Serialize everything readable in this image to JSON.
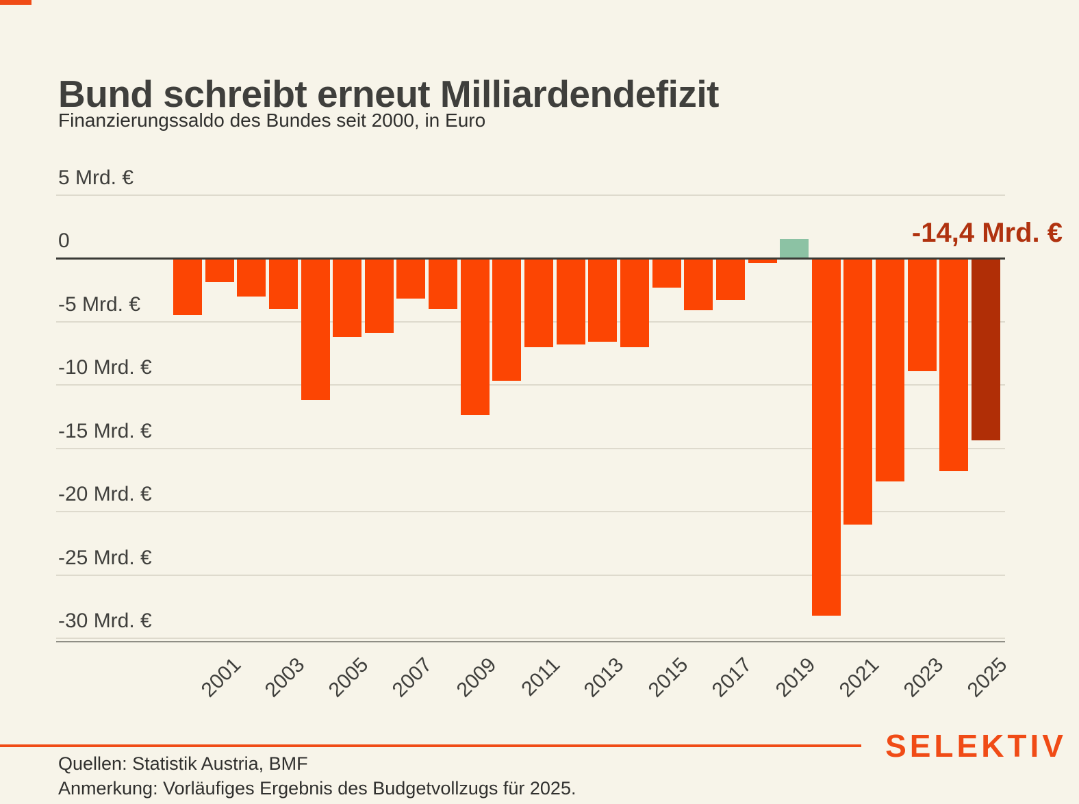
{
  "header": {
    "title": "Bund schreibt erneut Milliardendefizit",
    "subtitle": "Finanzierungssaldo des Bundes seit 2000, in Euro"
  },
  "annotation": {
    "label": "-14,4 Mrd. €",
    "color": "#B0320F"
  },
  "chart_data": {
    "type": "bar",
    "title": "Bund schreibt erneut Milliardendefizit",
    "subtitle": "Finanzierungssaldo des Bundes seit 2000, in Euro",
    "unit": "Mrd. €",
    "x": [
      2000,
      2001,
      2002,
      2003,
      2004,
      2005,
      2006,
      2007,
      2008,
      2009,
      2010,
      2011,
      2012,
      2013,
      2014,
      2015,
      2016,
      2017,
      2018,
      2019,
      2020,
      2021,
      2022,
      2023,
      2024,
      2025
    ],
    "values": [
      -4.5,
      -1.9,
      -3.0,
      -4.0,
      -11.2,
      -6.2,
      -5.9,
      -3.2,
      -4.0,
      -12.4,
      -9.7,
      -7.0,
      -6.8,
      -6.6,
      -7.0,
      -2.3,
      -4.1,
      -3.3,
      -0.4,
      1.5,
      -28.2,
      -21.0,
      -17.6,
      -8.9,
      -16.8,
      -14.4
    ],
    "ylim": [
      -30,
      5
    ],
    "ytick_values": [
      5,
      0,
      -5,
      -10,
      -15,
      -20,
      -25,
      -30
    ],
    "ytick_labels": [
      "5 Mrd. €",
      "0",
      "-5 Mrd. €",
      "-10 Mrd. €",
      "-15 Mrd. €",
      "-20 Mrd. €",
      "-25 Mrd. €",
      "-30 Mrd. €"
    ],
    "xtick_labels": [
      "2001",
      "2003",
      "2005",
      "2007",
      "2009",
      "2011",
      "2013",
      "2015",
      "2017",
      "2019",
      "2021",
      "2023",
      "2025"
    ],
    "grid": true,
    "legend": false,
    "bar_color_default": "#FC4503",
    "bar_color_overrides": {
      "2019": "#8CC2A4",
      "2025": "#B02E06"
    },
    "annotation_label": "-14,4 Mrd. €",
    "annotation_year": 2025
  },
  "footer": {
    "source": "Quellen: Statistik Austria, BMF",
    "note": "Anmerkung: Vorläufiges Ergebnis des Budgetvollzugs für 2025.",
    "logo": "SELEKTIV"
  },
  "colors": {
    "background": "#F7F4E9",
    "bar_orange": "#FC4503",
    "bar_green": "#8CC2A4",
    "bar_dark_red": "#B02E06",
    "accent_orange": "#F04B16",
    "text_dark": "#3F3F3C",
    "gridline": "#DEDACD",
    "zero_line": "#3A3A36"
  }
}
